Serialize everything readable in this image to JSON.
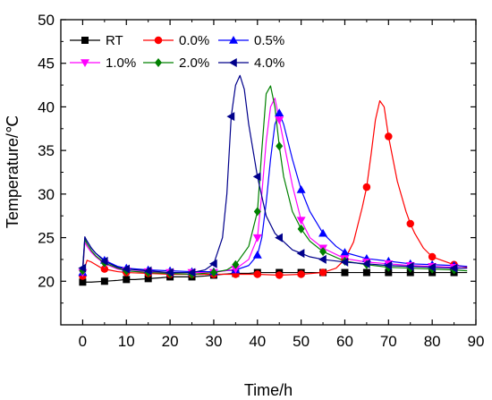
{
  "chart_data": {
    "type": "line",
    "xlabel": "Time/h",
    "ylabel": "Temperature/℃",
    "xlim": [
      -5,
      90
    ],
    "ylim": [
      15,
      50
    ],
    "xticks": [
      0,
      10,
      20,
      30,
      40,
      50,
      60,
      70,
      80,
      90
    ],
    "yticks": [
      20,
      25,
      30,
      35,
      40,
      45,
      50
    ],
    "grid": false,
    "legend_position": "top-left",
    "series": [
      {
        "name": "RT",
        "color": "#000000",
        "marker": "square",
        "x": [
          0,
          2,
          5,
          8,
          10,
          12,
          15,
          18,
          20,
          22,
          25,
          28,
          30,
          32,
          35,
          38,
          40,
          42,
          45,
          48,
          50,
          52,
          55,
          58,
          60,
          62,
          65,
          68,
          70,
          72,
          75,
          78,
          80,
          82,
          85,
          88
        ],
        "y": [
          19.9,
          19.9,
          20.0,
          20.1,
          20.2,
          20.2,
          20.3,
          20.4,
          20.5,
          20.5,
          20.5,
          20.6,
          20.7,
          20.8,
          20.9,
          20.9,
          21.0,
          21.0,
          21.0,
          21.0,
          21.0,
          21.0,
          21.0,
          21.0,
          21.0,
          21.0,
          21.0,
          21.0,
          21.0,
          21.0,
          21.0,
          21.0,
          21.0,
          21.0,
          21.0,
          21.0
        ],
        "markers_x": [
          0,
          5,
          10,
          15,
          20,
          25,
          30,
          35,
          40,
          45,
          50,
          55,
          60,
          65,
          70,
          75,
          80,
          85
        ],
        "markers_y": [
          19.9,
          20.0,
          20.2,
          20.3,
          20.5,
          20.5,
          20.7,
          20.9,
          21.0,
          21.0,
          21.0,
          21.0,
          21.0,
          21.0,
          21.0,
          21.0,
          21.0,
          21.0
        ]
      },
      {
        "name": "0.0%",
        "color": "#ff0000",
        "marker": "circle",
        "x": [
          0,
          0.5,
          1,
          1.5,
          2,
          3,
          4,
          5,
          6,
          8,
          10,
          15,
          20,
          25,
          30,
          35,
          40,
          45,
          50,
          55,
          58,
          60,
          62,
          64,
          65,
          66,
          67,
          68,
          69,
          70,
          72,
          74,
          75,
          76,
          78,
          80,
          85,
          88
        ],
        "y": [
          20.6,
          21.6,
          22.4,
          22.3,
          22.2,
          21.9,
          21.6,
          21.4,
          21.3,
          21.1,
          21.0,
          20.9,
          20.8,
          20.8,
          20.8,
          20.8,
          20.8,
          20.7,
          20.8,
          21.0,
          21.5,
          22.5,
          24.5,
          28.5,
          30.8,
          34.5,
          38.5,
          40.7,
          40.0,
          36.6,
          31.5,
          28.0,
          26.6,
          25.5,
          23.8,
          22.8,
          21.9,
          21.6
        ],
        "markers_x": [
          0,
          5,
          10,
          15,
          20,
          25,
          30,
          35,
          40,
          45,
          50,
          55,
          60,
          65,
          70,
          75,
          80,
          85
        ],
        "markers_y": [
          20.6,
          21.4,
          21.0,
          20.9,
          20.8,
          20.8,
          20.8,
          20.8,
          20.8,
          20.7,
          20.8,
          21.0,
          22.5,
          30.8,
          36.6,
          26.6,
          22.8,
          21.9
        ]
      },
      {
        "name": "0.5%",
        "color": "#0000ff",
        "marker": "triangle-up",
        "x": [
          0,
          0.5,
          1,
          2,
          3,
          5,
          8,
          10,
          15,
          20,
          25,
          28,
          30,
          35,
          38,
          40,
          41,
          42,
          43,
          44,
          45,
          46,
          48,
          50,
          52,
          55,
          58,
          60,
          65,
          70,
          75,
          80,
          85,
          88
        ],
        "y": [
          21.0,
          25.0,
          24.6,
          23.8,
          23.2,
          22.4,
          21.7,
          21.5,
          21.3,
          21.2,
          21.1,
          21.1,
          21.1,
          21.3,
          21.8,
          23.0,
          25.0,
          29.0,
          34.0,
          38.0,
          39.3,
          38.0,
          34.0,
          30.5,
          28.0,
          25.5,
          24.0,
          23.3,
          22.6,
          22.3,
          22.0,
          21.9,
          21.8,
          21.7
        ],
        "markers_x": [
          0,
          5,
          10,
          15,
          20,
          25,
          30,
          35,
          40,
          45,
          50,
          55,
          60,
          65,
          70,
          75,
          80,
          85
        ],
        "markers_y": [
          21.0,
          22.4,
          21.5,
          21.3,
          21.2,
          21.1,
          21.1,
          21.3,
          23.0,
          39.3,
          30.5,
          25.5,
          23.3,
          22.6,
          22.3,
          22.0,
          21.9,
          21.8
        ]
      },
      {
        "name": "1.0%",
        "color": "#ff00ff",
        "marker": "triangle-down",
        "x": [
          0,
          0.5,
          1,
          2,
          3,
          5,
          8,
          10,
          15,
          20,
          25,
          30,
          35,
          38,
          40,
          41,
          42,
          43,
          44,
          45,
          46,
          48,
          50,
          52,
          55,
          60,
          65,
          70,
          75,
          80,
          85,
          88
        ],
        "y": [
          21.0,
          24.5,
          24.0,
          23.3,
          22.8,
          22.0,
          21.4,
          21.2,
          21.1,
          21.0,
          21.0,
          21.0,
          21.4,
          22.5,
          25.0,
          30.0,
          36.0,
          40.0,
          41.0,
          38.5,
          36.0,
          31.0,
          27.0,
          25.0,
          23.8,
          22.6,
          22.2,
          22.0,
          21.8,
          21.7,
          21.6,
          21.5
        ],
        "markers_x": [
          0,
          5,
          10,
          15,
          20,
          25,
          30,
          35,
          40,
          45,
          50,
          55,
          60,
          65,
          70,
          75,
          80,
          85
        ],
        "markers_y": [
          21.0,
          22.0,
          21.2,
          21.1,
          21.0,
          21.0,
          21.0,
          21.4,
          25.0,
          38.5,
          27.0,
          23.8,
          22.6,
          22.2,
          22.0,
          21.8,
          21.7,
          21.6
        ]
      },
      {
        "name": "2.0%",
        "color": "#008000",
        "marker": "diamond",
        "x": [
          0,
          0.5,
          1,
          2,
          3,
          5,
          8,
          10,
          15,
          20,
          25,
          30,
          33,
          35,
          38,
          40,
          41,
          42,
          43,
          44,
          45,
          46,
          48,
          50,
          52,
          55,
          60,
          65,
          70,
          75,
          80,
          85,
          88
        ],
        "y": [
          21.2,
          24.8,
          24.3,
          23.5,
          22.9,
          22.1,
          21.5,
          21.2,
          21.0,
          20.9,
          20.8,
          21.0,
          21.3,
          21.9,
          24.0,
          28.0,
          35.0,
          41.5,
          42.4,
          40.0,
          35.5,
          32.0,
          28.0,
          26.0,
          24.6,
          23.4,
          22.3,
          21.9,
          21.6,
          21.5,
          21.4,
          21.3,
          21.2
        ],
        "markers_x": [
          0,
          5,
          10,
          15,
          20,
          25,
          30,
          35,
          40,
          45,
          50,
          55,
          60,
          65,
          70,
          75,
          80,
          85
        ],
        "markers_y": [
          21.2,
          22.1,
          21.2,
          21.0,
          20.9,
          20.8,
          21.0,
          21.9,
          28.0,
          35.5,
          26.0,
          23.4,
          22.3,
          21.9,
          21.6,
          21.5,
          21.4,
          21.3
        ]
      },
      {
        "name": "4.0%",
        "color": "#00008b",
        "marker": "triangle-left",
        "x": [
          0,
          0.5,
          1,
          2,
          3,
          5,
          8,
          10,
          15,
          20,
          25,
          28,
          30,
          32,
          33,
          34,
          35,
          36,
          37,
          38,
          39,
          40,
          42,
          44,
          45,
          48,
          50,
          52,
          55,
          60,
          65,
          70,
          75,
          80,
          85,
          88
        ],
        "y": [
          21.5,
          25.1,
          24.6,
          23.8,
          23.2,
          22.3,
          21.6,
          21.4,
          21.2,
          21.0,
          21.0,
          21.3,
          22.0,
          25.0,
          30.0,
          38.9,
          42.5,
          43.6,
          42.0,
          38.0,
          35.0,
          32.0,
          27.5,
          25.5,
          25.0,
          23.6,
          23.2,
          22.8,
          22.5,
          22.2,
          22.0,
          21.8,
          21.7,
          21.6,
          21.5,
          21.5
        ],
        "markers_x": [
          0,
          5,
          10,
          15,
          20,
          25,
          30,
          34,
          40,
          45,
          50,
          55,
          60,
          65,
          70,
          75,
          80,
          85
        ],
        "markers_y": [
          21.5,
          22.3,
          21.4,
          21.2,
          21.0,
          21.0,
          22.0,
          38.9,
          32.0,
          25.0,
          23.2,
          22.5,
          22.2,
          22.0,
          21.8,
          21.7,
          21.6,
          21.5
        ]
      }
    ]
  }
}
